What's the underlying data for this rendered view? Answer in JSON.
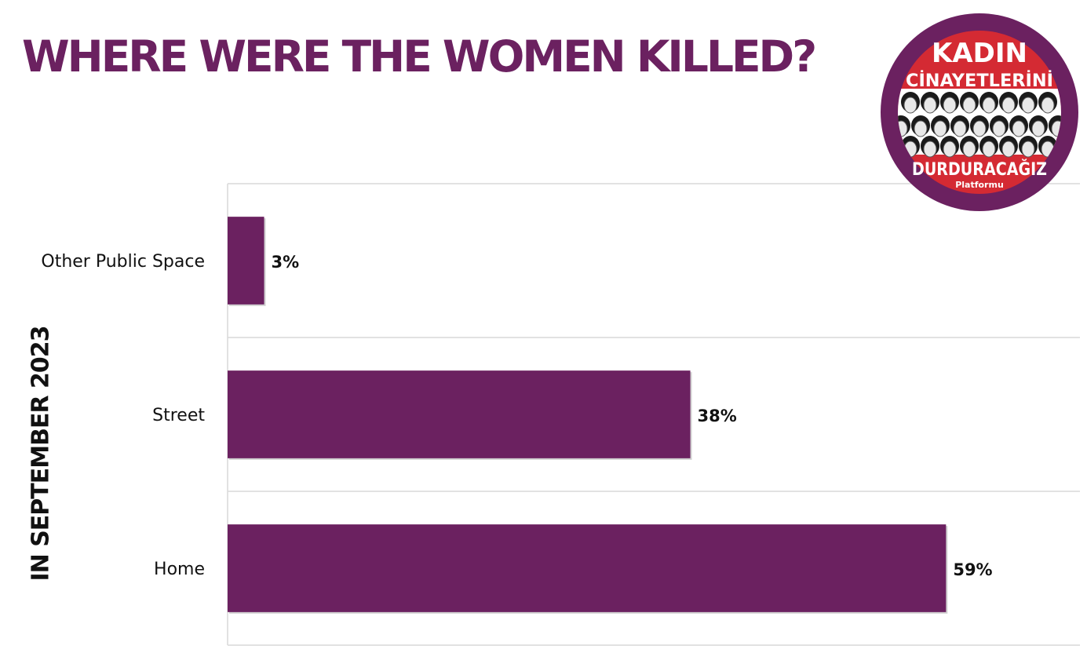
{
  "title": "WHERE WERE THE WOMEN KILLED?",
  "side_label": "IN SEPTEMBER 2023",
  "colors": {
    "bar": "#6b2160",
    "title": "#6b2160",
    "grid": "#d9d9d9",
    "logo_ring": "#6b2160",
    "logo_red": "#d42a33"
  },
  "logo": {
    "line1": "KADIN",
    "line2": "CİNAYETLERİNİ",
    "line3": "DURDURACAĞIZ",
    "line4": "Platformu"
  },
  "chart_data": {
    "type": "bar",
    "orientation": "horizontal",
    "categories": [
      "Other Public Space",
      "Street",
      "Home"
    ],
    "values": [
      3,
      38,
      59
    ],
    "data_labels": [
      "3%",
      "38%",
      "59%"
    ],
    "xlim": [
      0,
      70
    ],
    "grid": true,
    "legend": "none"
  }
}
